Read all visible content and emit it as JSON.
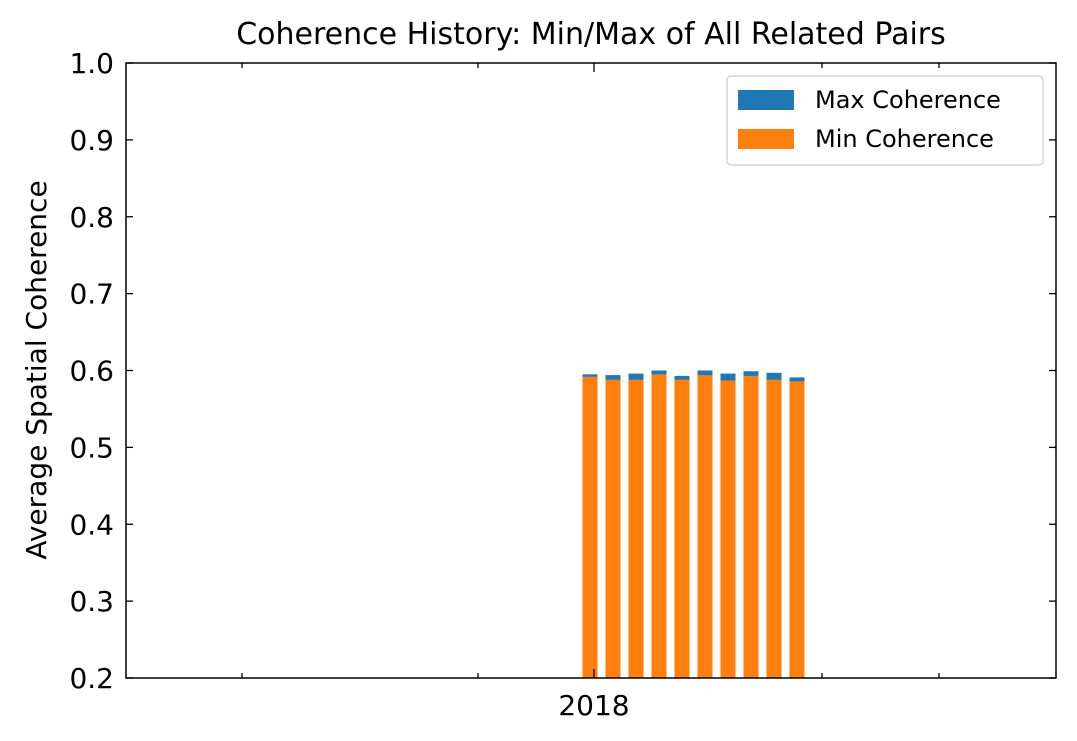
{
  "chart_data": {
    "type": "bar",
    "title": "Coherence History: Min/Max of All Related Pairs",
    "xlabel": "",
    "ylabel": "Average Spatial Coherence",
    "ylim": [
      0.2,
      1.0
    ],
    "y_ticks": [
      "0.2",
      "0.3",
      "0.4",
      "0.5",
      "0.6",
      "0.7",
      "0.8",
      "0.9",
      "1.0"
    ],
    "x_tick_labels": [
      "2018"
    ],
    "legend_position": "top-right",
    "grid": false,
    "series": [
      {
        "name": "Max Coherence",
        "color": "#1f77b4",
        "values": [
          0.595,
          0.594,
          0.596,
          0.6,
          0.593,
          0.6,
          0.596,
          0.599,
          0.597,
          0.591
        ]
      },
      {
        "name": "Min Coherence",
        "color": "#ff7f0e",
        "values": [
          0.592,
          0.588,
          0.588,
          0.595,
          0.588,
          0.594,
          0.587,
          0.593,
          0.588,
          0.586
        ]
      }
    ]
  }
}
